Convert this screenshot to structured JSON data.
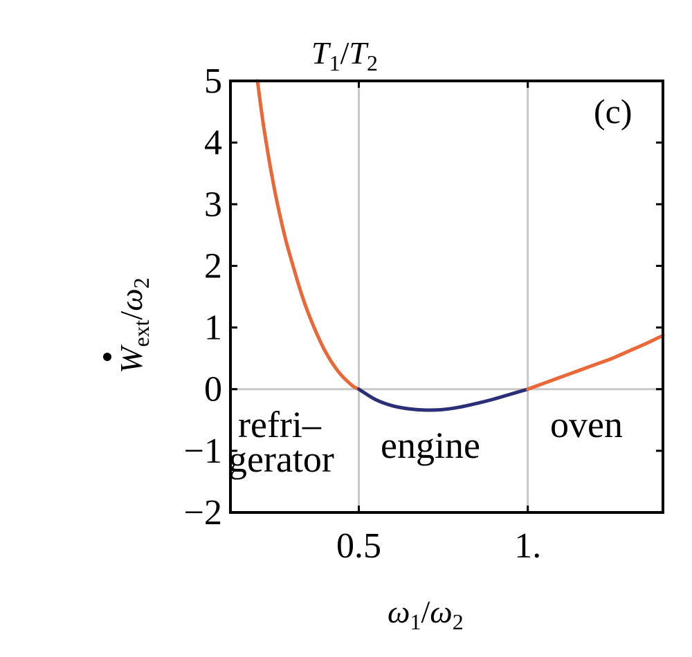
{
  "chart_data": {
    "type": "line",
    "top_label": {
      "main": "T",
      "sub1": "1",
      "slash": "/",
      "main2": "T",
      "sub2": "2"
    },
    "xlabel": {
      "main": "ω",
      "sub1": "1",
      "slash": "/",
      "main2": "ω",
      "sub2": "2"
    },
    "ylabel": {
      "main": "W",
      "sub1": "ext",
      "slash": "/",
      "main2": "ω",
      "sub2": "2"
    },
    "xlim": [
      0.12,
      1.4
    ],
    "ylim": [
      -2,
      5
    ],
    "x_ticks": [
      {
        "value": 0.5,
        "label": "0.5"
      },
      {
        "value": 1.0,
        "label": "1."
      }
    ],
    "y_ticks": [
      {
        "value": 5,
        "label": "5"
      },
      {
        "value": 4,
        "label": "4"
      },
      {
        "value": 3,
        "label": "3"
      },
      {
        "value": 2,
        "label": "2"
      },
      {
        "value": 1,
        "label": "1"
      },
      {
        "value": 0,
        "label": "0"
      },
      {
        "value": -1,
        "label": "−1"
      },
      {
        "value": -2,
        "label": "−2"
      }
    ],
    "grid_x": [
      0.5,
      1.0
    ],
    "grid_y": [
      0
    ],
    "panel_tag": "(c)",
    "regions": [
      {
        "name": "refrigerator",
        "lines": [
          "refri–",
          "gerator"
        ]
      },
      {
        "name": "engine",
        "lines": [
          "engine"
        ]
      },
      {
        "name": "oven",
        "lines": [
          "oven"
        ]
      }
    ],
    "series": [
      {
        "color_orange": "#ea6837",
        "color_blue": "#2b2f78",
        "x": [
          0.2,
          0.22,
          0.25,
          0.28,
          0.3,
          0.33,
          0.36,
          0.4,
          0.44,
          0.48,
          0.5,
          0.55,
          0.6,
          0.65,
          0.7,
          0.75,
          0.8,
          0.85,
          0.9,
          0.95,
          1.0,
          1.05,
          1.1,
          1.15,
          1.2,
          1.25,
          1.3,
          1.35,
          1.4
        ],
        "y": [
          5.0,
          4.2,
          3.25,
          2.5,
          2.1,
          1.55,
          1.1,
          0.62,
          0.28,
          0.06,
          0.0,
          -0.17,
          -0.27,
          -0.32,
          -0.34,
          -0.33,
          -0.29,
          -0.23,
          -0.16,
          -0.08,
          0.0,
          0.1,
          0.2,
          0.3,
          0.4,
          0.5,
          0.62,
          0.74,
          0.87
        ]
      }
    ]
  }
}
